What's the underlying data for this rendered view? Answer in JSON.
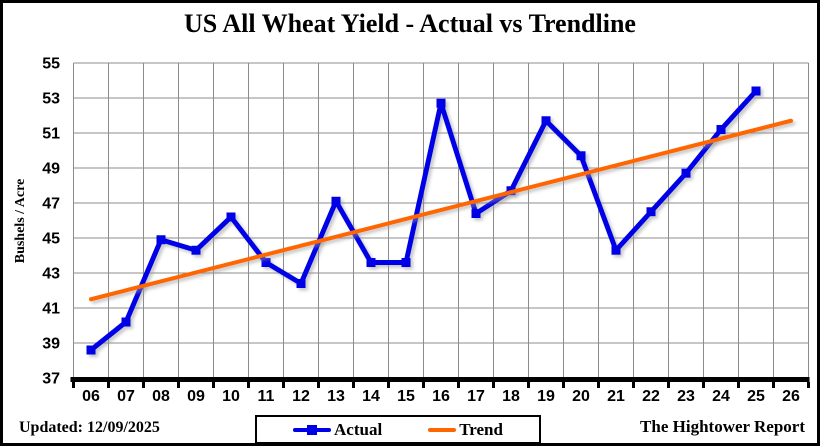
{
  "header": {
    "title": "US All Wheat Yield - Actual vs Trendline"
  },
  "footer": {
    "updated_label": "Updated: 12/09/2025",
    "credit": "The Hightower Report"
  },
  "legend": {
    "actual_label": "Actual",
    "trend_label": "Trend"
  },
  "colors": {
    "actual": "#0000E6",
    "trend": "#FF6600",
    "grid": "#8C8C8C",
    "axis": "#000000",
    "background": "#FFFFFF",
    "shadow": "#999999"
  },
  "chart_data": {
    "type": "line",
    "title": "US All Wheat Yield - Actual vs Trendline",
    "xlabel": "",
    "ylabel": "Bushels / Acre",
    "ylim": [
      37,
      55
    ],
    "ytick_step": 2,
    "ytick_labels": [
      "37",
      "39",
      "41",
      "43",
      "45",
      "47",
      "49",
      "51",
      "53",
      "55"
    ],
    "x_labels": [
      "06",
      "07",
      "08",
      "09",
      "10",
      "11",
      "12",
      "13",
      "14",
      "15",
      "16",
      "17",
      "18",
      "19",
      "20",
      "21",
      "22",
      "23",
      "24",
      "25",
      "26"
    ],
    "grid": true,
    "legend_position": "bottom-center",
    "series": [
      {
        "name": "Actual",
        "color": "#0000E6",
        "marker": "square",
        "x": [
          2006,
          2007,
          2008,
          2009,
          2010,
          2011,
          2012,
          2013,
          2014,
          2015,
          2016,
          2017,
          2018,
          2019,
          2020,
          2021,
          2022,
          2023,
          2024,
          2025
        ],
        "values": [
          38.6,
          40.2,
          44.9,
          44.3,
          46.2,
          43.6,
          42.4,
          47.1,
          43.6,
          43.6,
          52.7,
          46.4,
          47.7,
          51.7,
          49.7,
          44.3,
          46.5,
          48.7,
          51.2,
          53.4
        ]
      },
      {
        "name": "Trend",
        "color": "#FF6600",
        "marker": "none",
        "x": [
          2006,
          2026
        ],
        "values": [
          41.5,
          51.7
        ]
      }
    ]
  }
}
